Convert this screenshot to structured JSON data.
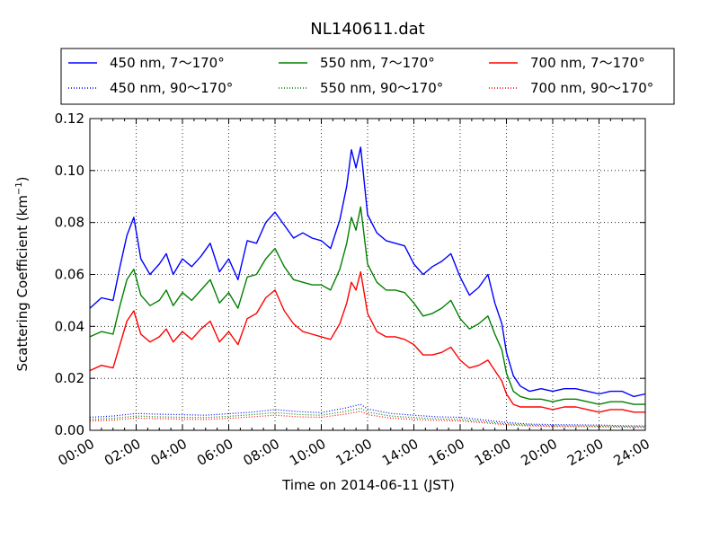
{
  "chart_data": {
    "type": "line",
    "title": "NL140611.dat",
    "xlabel": "Time on 2014-06-11 (JST)",
    "ylabel": "Scattering Coefficient (km",
    "ylabel_sup": "−1",
    "ylabel_close": ")",
    "xlim": [
      0,
      24
    ],
    "ylim": [
      0,
      0.12
    ],
    "grid": true,
    "legend_position": "top",
    "x_ticks": [
      {
        "value": 0,
        "label": "00:00"
      },
      {
        "value": 2,
        "label": "02:00"
      },
      {
        "value": 4,
        "label": "04:00"
      },
      {
        "value": 6,
        "label": "06:00"
      },
      {
        "value": 8,
        "label": "08:00"
      },
      {
        "value": 10,
        "label": "10:00"
      },
      {
        "value": 12,
        "label": "12:00"
      },
      {
        "value": 14,
        "label": "14:00"
      },
      {
        "value": 16,
        "label": "16:00"
      },
      {
        "value": 18,
        "label": "18:00"
      },
      {
        "value": 20,
        "label": "20:00"
      },
      {
        "value": 22,
        "label": "22:00"
      },
      {
        "value": 24,
        "label": "24:00"
      }
    ],
    "y_ticks": [
      {
        "value": 0,
        "label": "0.00"
      },
      {
        "value": 0.02,
        "label": "0.02"
      },
      {
        "value": 0.04,
        "label": "0.04"
      },
      {
        "value": 0.06,
        "label": "0.06"
      },
      {
        "value": 0.08,
        "label": "0.08"
      },
      {
        "value": 0.1,
        "label": "0.10"
      },
      {
        "value": 0.12,
        "label": "0.12"
      }
    ],
    "series": [
      {
        "name": "450 nm, 7～170°",
        "color": "#0000ff",
        "style": "solid",
        "x": [
          0,
          0.5,
          1,
          1.3,
          1.6,
          1.9,
          2.2,
          2.6,
          3,
          3.3,
          3.6,
          4,
          4.4,
          4.8,
          5.2,
          5.6,
          6,
          6.4,
          6.8,
          7.2,
          7.6,
          8,
          8.4,
          8.8,
          9.2,
          9.6,
          10,
          10.4,
          10.8,
          11.1,
          11.3,
          11.5,
          11.7,
          12,
          12.4,
          12.8,
          13.2,
          13.6,
          14,
          14.4,
          14.8,
          15.2,
          15.6,
          16,
          16.4,
          16.8,
          17.2,
          17.5,
          17.8,
          18,
          18.3,
          18.6,
          19,
          19.5,
          20,
          20.5,
          21,
          21.5,
          22,
          22.5,
          23,
          23.5,
          24
        ],
        "y": [
          0.047,
          0.051,
          0.05,
          0.063,
          0.075,
          0.082,
          0.066,
          0.06,
          0.064,
          0.068,
          0.06,
          0.066,
          0.063,
          0.067,
          0.072,
          0.061,
          0.066,
          0.058,
          0.073,
          0.072,
          0.08,
          0.084,
          0.079,
          0.074,
          0.076,
          0.074,
          0.073,
          0.07,
          0.081,
          0.094,
          0.108,
          0.101,
          0.109,
          0.083,
          0.076,
          0.073,
          0.072,
          0.071,
          0.064,
          0.06,
          0.063,
          0.065,
          0.068,
          0.059,
          0.052,
          0.055,
          0.06,
          0.049,
          0.041,
          0.03,
          0.021,
          0.017,
          0.015,
          0.016,
          0.015,
          0.016,
          0.016,
          0.015,
          0.014,
          0.015,
          0.015,
          0.013,
          0.014
        ]
      },
      {
        "name": "450 nm, 90～170°",
        "color": "#0000ff",
        "style": "dotted",
        "x": [
          0,
          1,
          2,
          3,
          4,
          5,
          6,
          7,
          8,
          9,
          10,
          11,
          11.7,
          12,
          13,
          14,
          15,
          16,
          17,
          18,
          19,
          20,
          21,
          22,
          23,
          24
        ],
        "y": [
          0.005,
          0.0055,
          0.0065,
          0.0062,
          0.006,
          0.0058,
          0.0064,
          0.007,
          0.008,
          0.0072,
          0.0068,
          0.0085,
          0.01,
          0.0082,
          0.0065,
          0.0058,
          0.0052,
          0.005,
          0.004,
          0.003,
          0.0024,
          0.0022,
          0.0021,
          0.002,
          0.0018,
          0.0017
        ]
      },
      {
        "name": "550 nm, 7～170°",
        "color": "#008000",
        "style": "solid",
        "x": [
          0,
          0.5,
          1,
          1.3,
          1.6,
          1.9,
          2.2,
          2.6,
          3,
          3.3,
          3.6,
          4,
          4.4,
          4.8,
          5.2,
          5.6,
          6,
          6.4,
          6.8,
          7.2,
          7.6,
          8,
          8.4,
          8.8,
          9.2,
          9.6,
          10,
          10.4,
          10.8,
          11.1,
          11.3,
          11.5,
          11.7,
          12,
          12.4,
          12.8,
          13.2,
          13.6,
          14,
          14.4,
          14.8,
          15.2,
          15.6,
          16,
          16.4,
          16.8,
          17.2,
          17.5,
          17.8,
          18,
          18.3,
          18.6,
          19,
          19.5,
          20,
          20.5,
          21,
          21.5,
          22,
          22.5,
          23,
          23.5,
          24
        ],
        "y": [
          0.036,
          0.038,
          0.037,
          0.048,
          0.058,
          0.062,
          0.052,
          0.048,
          0.05,
          0.054,
          0.048,
          0.053,
          0.05,
          0.054,
          0.058,
          0.049,
          0.053,
          0.047,
          0.059,
          0.06,
          0.066,
          0.07,
          0.063,
          0.058,
          0.057,
          0.056,
          0.056,
          0.054,
          0.062,
          0.072,
          0.082,
          0.077,
          0.086,
          0.064,
          0.057,
          0.054,
          0.054,
          0.053,
          0.049,
          0.044,
          0.045,
          0.047,
          0.05,
          0.043,
          0.039,
          0.041,
          0.044,
          0.037,
          0.031,
          0.022,
          0.015,
          0.013,
          0.012,
          0.012,
          0.011,
          0.012,
          0.012,
          0.011,
          0.01,
          0.011,
          0.011,
          0.01,
          0.01
        ]
      },
      {
        "name": "550 nm, 90～170°",
        "color": "#008000",
        "style": "dotted",
        "x": [
          0,
          1,
          2,
          3,
          4,
          5,
          6,
          7,
          8,
          9,
          10,
          11,
          11.7,
          12,
          13,
          14,
          15,
          16,
          17,
          18,
          19,
          20,
          21,
          22,
          23,
          24
        ],
        "y": [
          0.0042,
          0.0046,
          0.0055,
          0.0052,
          0.005,
          0.0049,
          0.0054,
          0.006,
          0.0068,
          0.0061,
          0.0058,
          0.0072,
          0.0085,
          0.007,
          0.0055,
          0.0049,
          0.0044,
          0.0042,
          0.0034,
          0.0025,
          0.002,
          0.0018,
          0.0017,
          0.0016,
          0.0015,
          0.0014
        ]
      },
      {
        "name": "700 nm, 7～170°",
        "color": "#ff0000",
        "style": "solid",
        "x": [
          0,
          0.5,
          1,
          1.3,
          1.6,
          1.9,
          2.2,
          2.6,
          3,
          3.3,
          3.6,
          4,
          4.4,
          4.8,
          5.2,
          5.6,
          6,
          6.4,
          6.8,
          7.2,
          7.6,
          8,
          8.4,
          8.8,
          9.2,
          9.6,
          10,
          10.4,
          10.8,
          11.1,
          11.3,
          11.5,
          11.7,
          12,
          12.4,
          12.8,
          13.2,
          13.6,
          14,
          14.4,
          14.8,
          15.2,
          15.6,
          16,
          16.4,
          16.8,
          17.2,
          17.5,
          17.8,
          18,
          18.3,
          18.6,
          19,
          19.5,
          20,
          20.5,
          21,
          21.5,
          22,
          22.5,
          23,
          23.5,
          24
        ],
        "y": [
          0.023,
          0.025,
          0.024,
          0.033,
          0.042,
          0.046,
          0.037,
          0.034,
          0.036,
          0.039,
          0.034,
          0.038,
          0.035,
          0.039,
          0.042,
          0.034,
          0.038,
          0.033,
          0.043,
          0.045,
          0.051,
          0.054,
          0.046,
          0.041,
          0.038,
          0.037,
          0.036,
          0.035,
          0.041,
          0.049,
          0.057,
          0.054,
          0.061,
          0.045,
          0.038,
          0.036,
          0.036,
          0.035,
          0.033,
          0.029,
          0.029,
          0.03,
          0.032,
          0.027,
          0.024,
          0.025,
          0.027,
          0.023,
          0.019,
          0.014,
          0.01,
          0.009,
          0.009,
          0.009,
          0.008,
          0.009,
          0.009,
          0.008,
          0.007,
          0.008,
          0.008,
          0.007,
          0.007
        ]
      },
      {
        "name": "700 nm, 90～170°",
        "color": "#ff0000",
        "style": "dotted",
        "x": [
          0,
          1,
          2,
          3,
          4,
          5,
          6,
          7,
          8,
          9,
          10,
          11,
          11.7,
          12,
          13,
          14,
          15,
          16,
          17,
          18,
          19,
          20,
          21,
          22,
          23,
          24
        ],
        "y": [
          0.0036,
          0.0039,
          0.0047,
          0.0045,
          0.0043,
          0.0042,
          0.0046,
          0.0052,
          0.0058,
          0.0052,
          0.005,
          0.0062,
          0.0073,
          0.006,
          0.0047,
          0.0042,
          0.0038,
          0.0036,
          0.0029,
          0.0021,
          0.0017,
          0.0015,
          0.0014,
          0.0013,
          0.0012,
          0.0011
        ]
      }
    ]
  }
}
